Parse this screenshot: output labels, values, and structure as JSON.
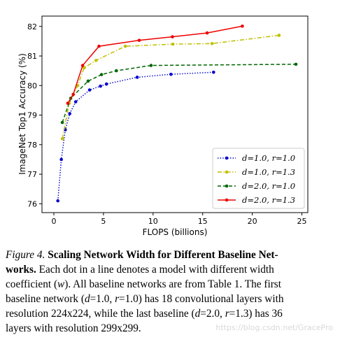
{
  "chart_data": {
    "type": "line",
    "xlabel": "FLOPS (billions)",
    "ylabel": "ImageNet Top1 Accuracy (%)",
    "xlim": [
      -1.2,
      25.6
    ],
    "ylim": [
      75.7,
      82.35
    ],
    "x_ticks": [
      0,
      5,
      10,
      15,
      20,
      25
    ],
    "y_ticks": [
      76,
      77,
      78,
      79,
      80,
      81,
      82
    ],
    "grid": false,
    "legend_position": "lower-right",
    "series": [
      {
        "name": "d=1.0, r=1.0",
        "color": "#0000cc",
        "style": "dotted",
        "x": [
          0.4,
          0.75,
          1.15,
          1.6,
          2.2,
          3.6,
          4.7,
          5.3,
          8.4,
          11.8,
          16.1
        ],
        "y": [
          76.1,
          77.5,
          78.5,
          79.05,
          79.45,
          79.85,
          79.98,
          80.05,
          80.28,
          80.38,
          80.45
        ]
      },
      {
        "name": "d=1.0, r=1.3",
        "color": "#bfbf00",
        "style": "dashdot",
        "x": [
          0.85,
          1.55,
          2.4,
          3.05,
          4.25,
          7.2,
          12.0,
          15.95,
          22.7
        ],
        "y": [
          78.2,
          79.4,
          80.0,
          80.6,
          80.85,
          81.33,
          81.4,
          81.42,
          81.7
        ]
      },
      {
        "name": "d=2.0, r=1.0",
        "color": "#006600",
        "style": "dashed",
        "x": [
          0.85,
          1.7,
          3.45,
          4.8,
          6.3,
          9.8,
          24.4
        ],
        "y": [
          78.75,
          79.57,
          80.15,
          80.37,
          80.5,
          80.68,
          80.72
        ]
      },
      {
        "name": "d=2.0, r=1.3",
        "color": "#ee0000",
        "style": "solid",
        "x": [
          1.4,
          1.95,
          2.9,
          4.55,
          8.6,
          11.95,
          15.45,
          19.0
        ],
        "y": [
          79.4,
          79.7,
          80.68,
          81.33,
          81.53,
          81.65,
          81.78,
          82.01
        ]
      }
    ]
  },
  "caption": {
    "figure_no": "Figure 4.",
    "title": "Scaling Network Width for Different Baseline Net-",
    "line1_tail": "works.",
    "line1_text": "Each dot in a line denotes a model with different width",
    "line2_pre": "coefficient (",
    "line2_var": "w",
    "line2_post": "). All baseline networks are from Table 1. The first",
    "line3": "baseline network (",
    "line3_d": "d",
    "line3_mid1": "=1.0, ",
    "line3_r": "r",
    "line3_mid2": "=1.0) has 18 convolutional layers with",
    "line4_pre": "resolution 224x224, while the last baseline (",
    "line4_d": "d",
    "line4_mid1": "=2.0, ",
    "line4_r": "r",
    "line4_post": "=1.3) has 36",
    "line5": "layers with resolution 299x299."
  },
  "watermark": "https://blog.csdn.net/GracePro"
}
